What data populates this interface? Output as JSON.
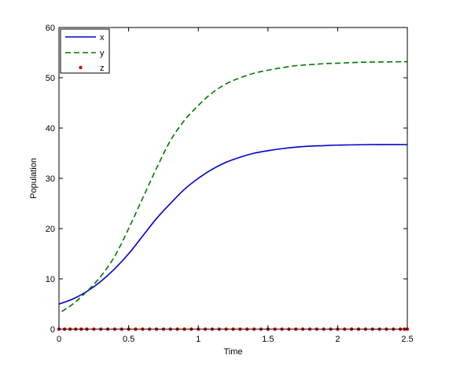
{
  "chart_data": {
    "type": "line",
    "xlabel": "Time",
    "ylabel": "Population",
    "xlim": [
      0,
      2.5
    ],
    "ylim": [
      0,
      60
    ],
    "xticks": [
      "0",
      "0.5",
      "1",
      "1.5",
      "2",
      "2.5"
    ],
    "yticks": [
      "0",
      "10",
      "20",
      "30",
      "40",
      "50",
      "60"
    ],
    "grid": false,
    "legend_position": "top-left",
    "series": [
      {
        "name": "x",
        "color": "#0000cc",
        "style": "solid",
        "x": [
          0,
          0.1,
          0.2,
          0.3,
          0.4,
          0.5,
          0.6,
          0.7,
          0.8,
          0.9,
          1.0,
          1.1,
          1.2,
          1.3,
          1.4,
          1.5,
          1.6,
          1.7,
          1.8,
          1.9,
          2.0,
          2.2,
          2.5
        ],
        "y": [
          5.0,
          6.0,
          7.5,
          9.5,
          12.0,
          15.0,
          18.5,
          22.0,
          25.0,
          27.8,
          30.0,
          31.8,
          33.2,
          34.2,
          35.0,
          35.5,
          35.9,
          36.2,
          36.4,
          36.5,
          36.6,
          36.7,
          36.7
        ]
      },
      {
        "name": "y",
        "color": "#007700",
        "style": "dashed",
        "x": [
          0.02,
          0.1,
          0.2,
          0.3,
          0.4,
          0.5,
          0.6,
          0.7,
          0.8,
          0.9,
          1.0,
          1.1,
          1.2,
          1.3,
          1.4,
          1.5,
          1.6,
          1.7,
          1.8,
          1.9,
          2.0,
          2.2,
          2.5
        ],
        "y": [
          3.5,
          5.0,
          7.5,
          10.5,
          14.5,
          20.0,
          26.0,
          32.0,
          37.5,
          41.5,
          44.5,
          47.0,
          48.8,
          50.0,
          50.9,
          51.5,
          52.0,
          52.4,
          52.6,
          52.8,
          52.9,
          53.1,
          53.2
        ]
      },
      {
        "name": "z",
        "color": "#dd0000",
        "style": "markers",
        "x": [
          0,
          0.04,
          0.08,
          0.12,
          0.16,
          0.2,
          0.25,
          0.3,
          0.35,
          0.4,
          0.45,
          0.5,
          0.55,
          0.6,
          0.65,
          0.7,
          0.75,
          0.8,
          0.85,
          0.9,
          0.95,
          1.0,
          1.05,
          1.1,
          1.15,
          1.2,
          1.25,
          1.3,
          1.35,
          1.4,
          1.45,
          1.5,
          1.55,
          1.6,
          1.65,
          1.7,
          1.75,
          1.8,
          1.85,
          1.9,
          1.95,
          2.0,
          2.05,
          2.1,
          2.15,
          2.2,
          2.25,
          2.3,
          2.35,
          2.4,
          2.45,
          2.48,
          2.5
        ],
        "y": [
          0,
          0,
          0,
          0,
          0,
          0,
          0,
          0,
          0,
          0,
          0,
          0,
          0,
          0,
          0,
          0,
          0,
          0,
          0,
          0,
          0,
          0,
          0,
          0,
          0,
          0,
          0,
          0,
          0,
          0,
          0,
          0,
          0,
          0,
          0,
          0,
          0,
          0,
          0,
          0,
          0,
          0,
          0,
          0,
          0,
          0,
          0,
          0,
          0,
          0,
          0,
          0,
          0
        ]
      }
    ]
  }
}
